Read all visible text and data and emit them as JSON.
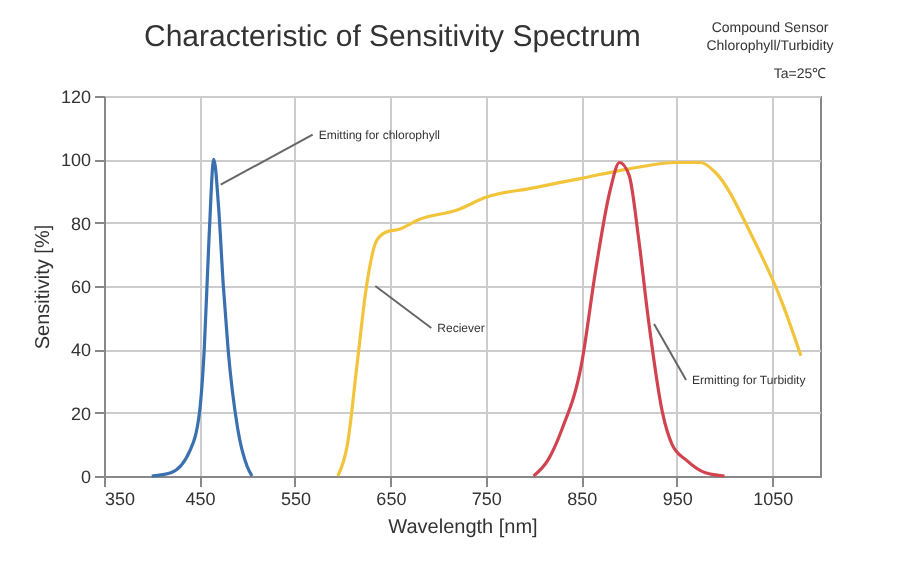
{
  "chart_data": {
    "type": "line",
    "title": "Characteristic of Sensitivity Spectrum",
    "xlabel": "Wavelength [nm]",
    "ylabel": "Sensitivity [%]",
    "annotations": [
      "Compound Sensor",
      "Chlorophyll/Turbidity",
      "Ta=25℃",
      {
        "text": "Emitting for chlorophyll",
        "x": 468,
        "y": 92
      },
      {
        "text": "Reciever",
        "x": 630,
        "y": 60
      },
      {
        "text": "Ermitting for Turbidity",
        "x": 922,
        "y": 48
      }
    ],
    "series": [
      {
        "color": "#3a6fb0",
        "x": [
          400,
          420,
          440,
          450,
          455,
          460,
          465,
          470,
          475,
          480,
          490,
          500,
          505
        ],
        "values": [
          0,
          1,
          8,
          20,
          40,
          75,
          100,
          85,
          60,
          40,
          15,
          3,
          0
        ]
      },
      {
        "color": "#f2c43c",
        "x": [
          595,
          605,
          615,
          625,
          635,
          645,
          660,
          680,
          720,
          750,
          800,
          850,
          900,
          950,
          975,
          990,
          1030,
          1060,
          1080
        ],
        "values": [
          0,
          10,
          35,
          60,
          74,
          77,
          78,
          81,
          84,
          88,
          91,
          94,
          97,
          99,
          99,
          96,
          75,
          55,
          38
        ]
      },
      {
        "color": "#d0434f",
        "x": [
          800,
          815,
          830,
          850,
          865,
          880,
          890,
          900,
          910,
          920,
          935,
          945,
          960,
          980,
          1000
        ],
        "values": [
          0,
          5,
          15,
          35,
          65,
          90,
          99,
          95,
          75,
          50,
          20,
          10,
          5,
          1,
          0
        ]
      }
    ],
    "xlim": [
      350,
      1100
    ],
    "xticks": [
      350,
      450,
      550,
      650,
      750,
      850,
      950,
      {
        "value": 1050,
        "label": "1050"
      }
    ],
    "ylim": [
      0,
      120
    ],
    "yticks": [
      0,
      20,
      40,
      60,
      80,
      100,
      120
    ],
    "grid": true
  }
}
